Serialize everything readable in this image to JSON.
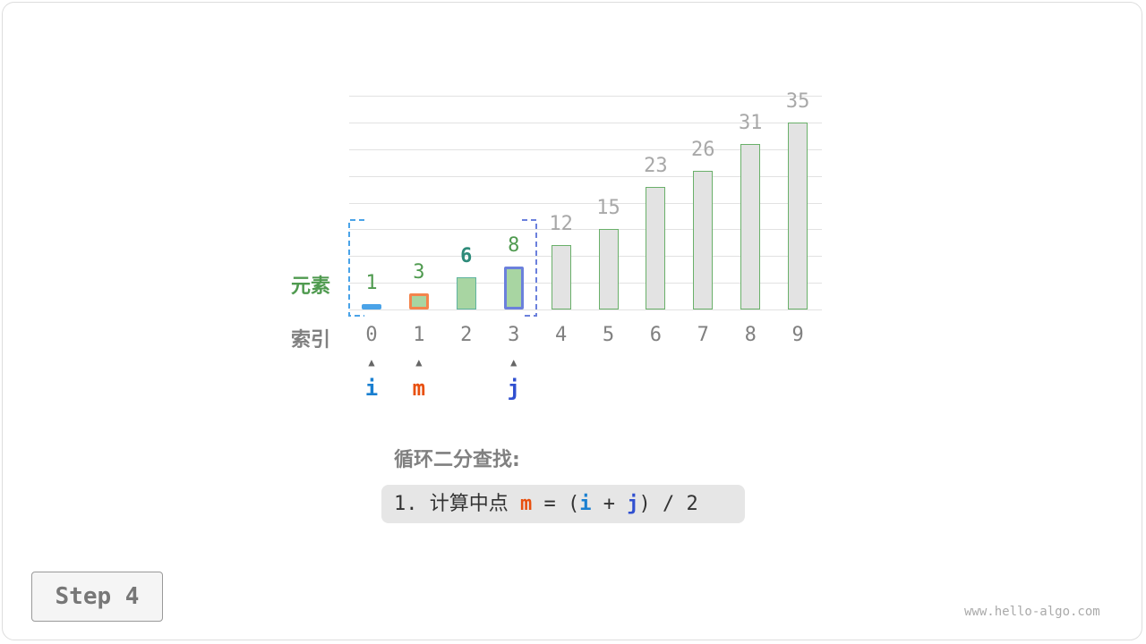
{
  "chart_data": {
    "type": "bar",
    "categories": [
      "0",
      "1",
      "2",
      "3",
      "4",
      "5",
      "6",
      "7",
      "8",
      "9"
    ],
    "values": [
      1,
      3,
      6,
      8,
      12,
      15,
      23,
      26,
      31,
      35
    ],
    "ylim": [
      0,
      40
    ],
    "grid": true
  },
  "labels": {
    "elements": "元素",
    "index": "索引"
  },
  "pointers": [
    {
      "name": "i",
      "index": 0,
      "color": "#1a7fd0"
    },
    {
      "name": "m",
      "index": 1,
      "color": "#e8500f"
    },
    {
      "name": "j",
      "index": 3,
      "color": "#3050d0"
    }
  ],
  "search_range": [
    0,
    3
  ],
  "highlight": {
    "bold_value_index": 2
  },
  "description": {
    "title": "循环二分查找:",
    "step_prefix": "1. 计算中点 ",
    "m": "m",
    "eq": " = (",
    "i": "i",
    "plus": " + ",
    "j": "j",
    "tail": ") / 2"
  },
  "step_label": "Step 4",
  "watermark": "www.hello-algo.com",
  "colors": {
    "active_fill": "#a8d5a2",
    "inactive_fill": "#e3e3e3",
    "bar_border": "#6ab06a",
    "value_active": "#4f9a4f",
    "value_inactive": "#a8a8a8",
    "value_bold": "#2e8b7a",
    "i_border": "#4aa3e8",
    "m_border": "#f4844c",
    "j_border": "#6b80dc"
  }
}
